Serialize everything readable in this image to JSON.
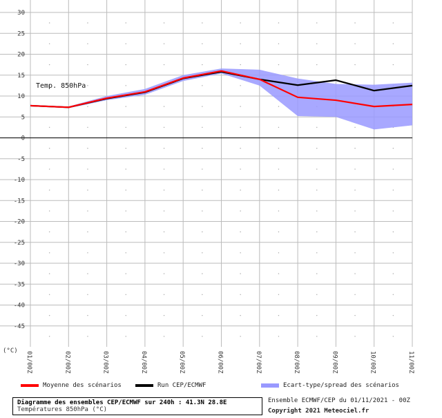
{
  "chart_data": {
    "type": "line",
    "inline_label": "Temp. 850hPa",
    "ylabel": "(°C)",
    "ylim": [
      -50,
      30
    ],
    "y_ticks": [
      30,
      25,
      20,
      15,
      10,
      5,
      0,
      -5,
      -10,
      -15,
      -20,
      -25,
      -30,
      -35,
      -40,
      -45
    ],
    "categories": [
      "01/00Z",
      "02/00Z",
      "03/00Z",
      "04/00Z",
      "05/00Z",
      "06/00Z",
      "07/00Z",
      "08/00Z",
      "09/00Z",
      "10/00Z",
      "11/00Z"
    ],
    "x_tick_labels": [
      "01/00Z",
      "02/00Z",
      "03/00Z",
      "04/00Z",
      "05/00Z",
      "06/00Z",
      "07/00Z",
      "08/00Z",
      "09/00Z",
      "10/00Z",
      "11/00Z"
    ],
    "grid": true,
    "series": [
      {
        "name": "Moyenne des scénarios",
        "color": "#ff0000",
        "values": [
          7.7,
          7.3,
          9.5,
          11.0,
          14.3,
          16.0,
          14.0,
          9.7,
          9.0,
          7.5,
          8.0
        ]
      },
      {
        "name": "Run CEP/ECMWF",
        "color": "#000000",
        "values": [
          7.7,
          7.3,
          9.4,
          10.9,
          14.2,
          15.8,
          14.0,
          12.6,
          13.8,
          11.3,
          12.5
        ]
      }
    ],
    "spread": {
      "name": "Ecart-type/spread des scénarios",
      "color": "#9999ff",
      "upper": [
        7.9,
        7.5,
        10.0,
        11.7,
        15.0,
        16.6,
        16.3,
        14.2,
        12.9,
        12.7,
        13.2
      ],
      "lower": [
        7.5,
        7.1,
        9.0,
        10.3,
        13.6,
        15.4,
        12.5,
        5.2,
        5.0,
        2.0,
        3.0
      ]
    }
  },
  "legend": {
    "mean_label": "Moyenne des scénarios",
    "run_label": "Run CEP/ECMWF",
    "spread_label": "Ecart-type/spread des scénarios"
  },
  "footer": {
    "title": "Diagramme des ensembles CEP/ECMWF sur 240h : 41.3N 28.8E",
    "subtitle": "Températures 850hPa (°C)",
    "ensemble_info": "Ensemble ECMWF/CEP du 01/11/2021 - 00Z",
    "copyright": "Copyright 2021 Meteociel.fr"
  }
}
